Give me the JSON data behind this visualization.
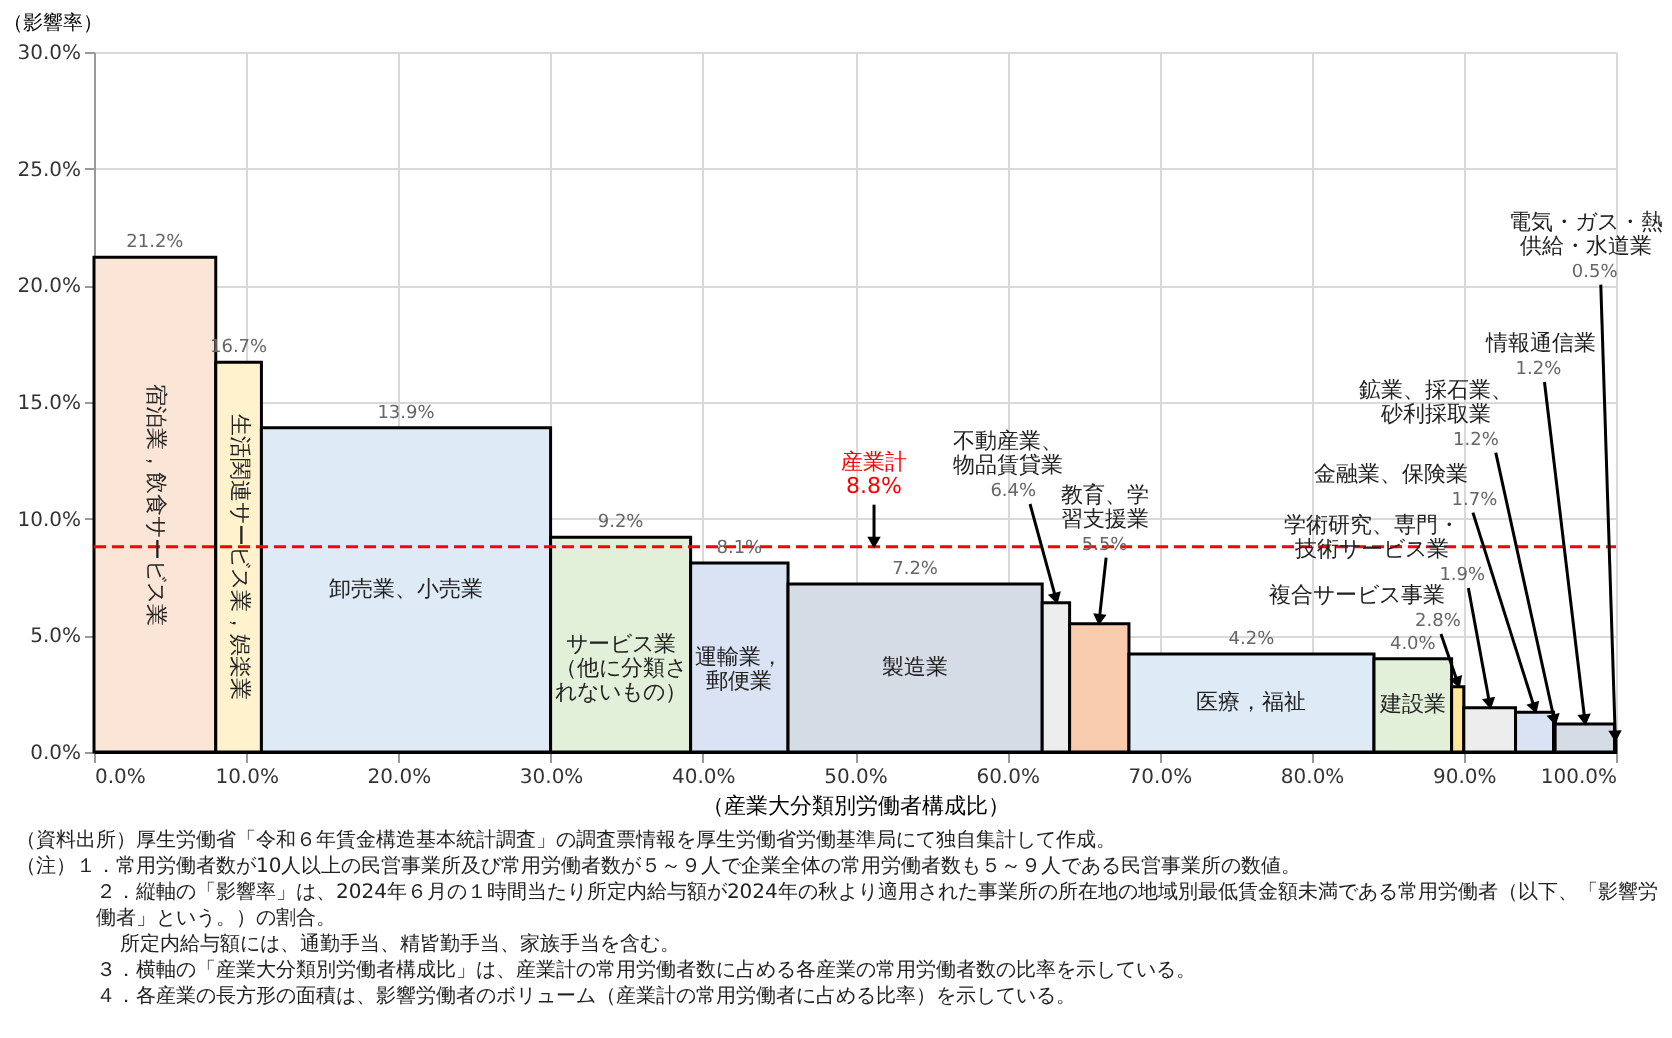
{
  "chart_data": {
    "type": "bar",
    "xlabel": "（産業大分類別労働者構成比）",
    "ylabel": "（影響率）",
    "x": [
      4.0,
      9.5,
      20.5,
      34.6,
      42.4,
      53.95,
      63.2,
      66.05,
      76.05,
      86.65,
      89.6,
      91.7,
      94.65,
      95.95,
      97.95,
      99.95
    ],
    "values": [
      21.2,
      16.7,
      13.9,
      9.2,
      8.1,
      7.2,
      6.4,
      5.5,
      4.2,
      4.0,
      2.8,
      1.9,
      1.7,
      1.2,
      1.2,
      0.5
    ],
    "value_labels": [
      "21.2%",
      "16.7%",
      "13.9%",
      "9.2%",
      "8.1%",
      "7.2%",
      "6.4%",
      "5.5%",
      "4.2%",
      "4.0%",
      "2.8%",
      "1.9%",
      "1.7%",
      "1.2%",
      "1.2%",
      "0.5%"
    ],
    "colors": [
      "#fbe5d6",
      "#fff2cc",
      "#deebf7",
      "#e2f0d9",
      "#dae3f3",
      "#d6dce5",
      "#ededed",
      "#f8cbad",
      "#deebf7",
      "#e2f0d9",
      "#ffe699",
      "#ededed",
      "#dae3f3",
      "#d6dce5",
      "#d6dce5",
      "#d6dce5"
    ],
    "xlim": [
      0,
      100
    ],
    "xticks": [
      {
        "value": 0,
        "label": "0.0%"
      },
      {
        "value": 10,
        "label": "10.0%"
      },
      {
        "value": 20,
        "label": "20.0%"
      },
      {
        "value": 30,
        "label": "30.0%"
      },
      {
        "value": 40,
        "label": "40.0%"
      },
      {
        "value": 50,
        "label": "50.0%"
      },
      {
        "value": 60,
        "label": "60.0%"
      },
      {
        "value": 70,
        "label": "70.0%"
      },
      {
        "value": 80,
        "label": "80.0%"
      },
      {
        "value": 90,
        "label": "90.0%"
      },
      {
        "value": 100,
        "label": "100.0%"
      }
    ],
    "ylim": [
      0,
      30
    ],
    "yticks": [
      {
        "value": 0,
        "label": "0.0%"
      },
      {
        "value": 5,
        "label": "5.0%"
      },
      {
        "value": 10,
        "label": "10.0%"
      },
      {
        "value": 15,
        "label": "15.0%"
      },
      {
        "value": 20,
        "label": "20.0%"
      },
      {
        "value": 25,
        "label": "25.0%"
      },
      {
        "value": 30,
        "label": "30.0%"
      }
    ],
    "grid": true,
    "ref_lines": [
      {
        "axis": "y",
        "value": 8.8,
        "label": "産業計\n8.8%",
        "color": "#ff0000",
        "line_style": "dashed"
      }
    ],
    "annotations": [
      "宿泊業，飲食サービス業",
      "生活関連サービス業，娯楽業",
      "卸売業、小売業",
      "サービス業（他に分類されないもの）",
      "運輸業，郵便業",
      "製造業",
      "医療，福祉",
      "建設業",
      {
        "text": "不動産業、物品賃貸業",
        "x": 63.2,
        "y": 6.4
      },
      {
        "text": "教育、学習支援業",
        "x": 66.05,
        "y": 5.5
      },
      {
        "text": "複合サービス事業",
        "x": 89.6,
        "y": 2.8
      },
      {
        "text": "学術研究、専門・技術サービス業",
        "x": 91.7,
        "y": 1.9
      },
      {
        "text": "金融業、保険業",
        "x": 94.65,
        "y": 1.7
      },
      {
        "text": "鉱業、採石業、砂利採取業",
        "x": 95.95,
        "y": 1.2
      },
      {
        "text": "情報通信業",
        "x": 97.95,
        "y": 1.2
      },
      {
        "text": "電気・ガス・熱供給・水道業",
        "x": 99.95,
        "y": 0.5
      },
      "（資料出所）厚生労働省「令和６年賃金構造基本統計調査」の調査票情報を厚生労働省労働基準局にて独自集計して作成。",
      "（注）１．常用労働者数が10人以上の民営事業所及び常用労働者数が５～９人で企業全体の常用労働者数も５～９人である民営事業所の数値。",
      "２．縦軸の「影響率」は、2024年６月の１時間当たり所定内給与額が2024年の秋より適用された事業所の所在地の地域別最低賃金額未満である常用労働者（以下、「影響労働者」という。）の割合。",
      "所定内給与額には、通勤手当、精皆勤手当、家族手当を含む。",
      "３．横軸の「産業大分類別労働者構成比」は、産業計の常用労働者数に占める各産業の常用労働者数の比率を示している。",
      "４．各産業の長方形の面積は、影響労働者のボリューム（産業計の常用労働者に占める比率）を示している。"
    ]
  }
}
